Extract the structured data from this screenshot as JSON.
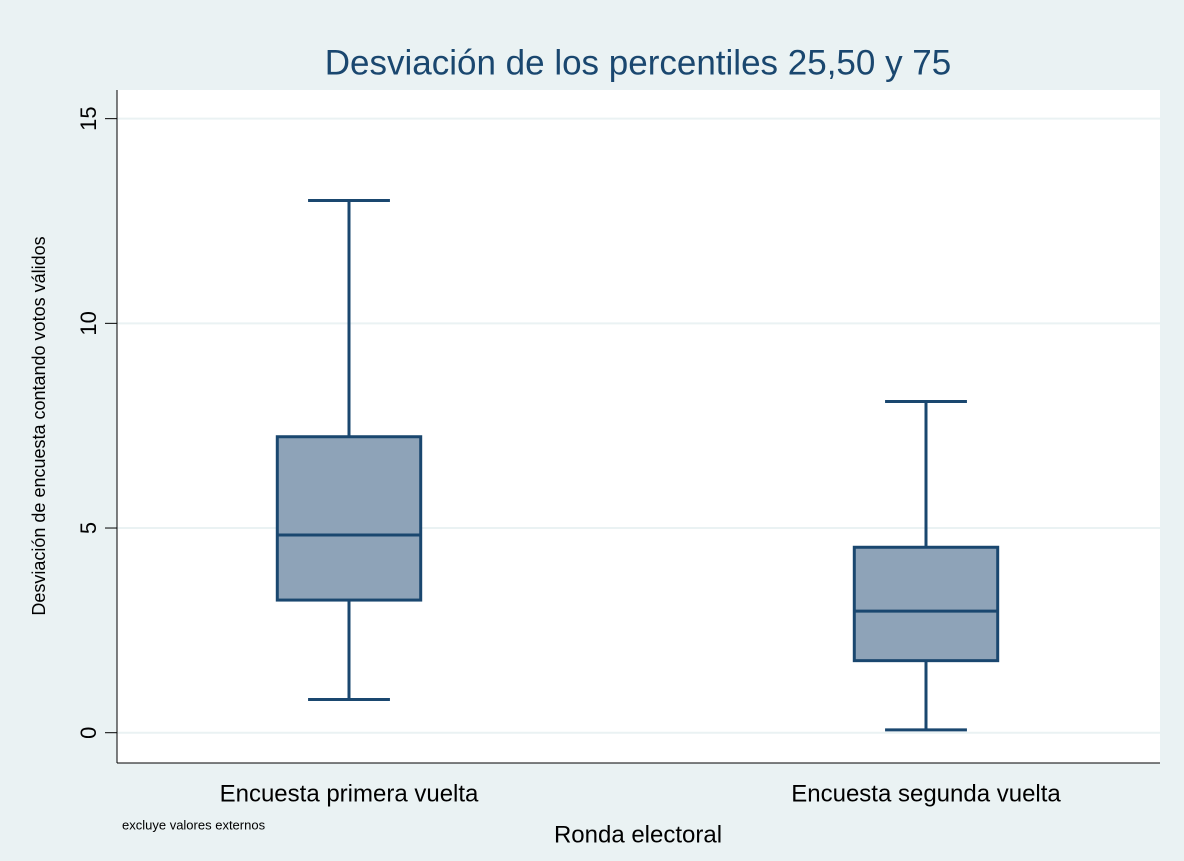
{
  "chart_data": {
    "type": "box",
    "title": "Desviación de los percentiles 25,50 y 75",
    "xlabel": "Ronda electoral",
    "ylabel": "Desviación de encuesta contando votos válidos",
    "note": "excluye valores externos",
    "categories": [
      "Encuesta primera vuelta",
      "Encuesta segunda vuelta"
    ],
    "boxes": [
      {
        "whisker_low": 0.81,
        "q1": 3.24,
        "median": 4.83,
        "q3": 7.23,
        "whisker_high": 13
      },
      {
        "whisker_low": 0.07,
        "q1": 1.76,
        "median": 2.97,
        "q3": 4.53,
        "whisker_high": 8.09
      }
    ],
    "color": "#8ea3b8",
    "edge_color": "#1a476f",
    "ylim": [
      -0.74,
      15.7
    ],
    "yticks": [
      0,
      5,
      10,
      15
    ],
    "grid": true
  }
}
